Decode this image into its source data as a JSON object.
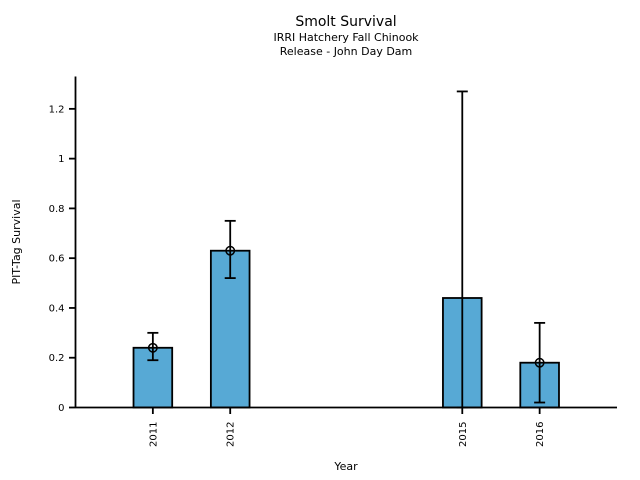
{
  "figure": {
    "background": "#ffffff"
  },
  "chart_data": {
    "type": "bar",
    "title": "Smolt Survival",
    "subtitle_line1": "IRRI Hatchery Fall Chinook",
    "subtitle_line2": "Release - John Day Dam",
    "xlabel": "Year",
    "ylabel": "PIT-Tag Survival",
    "categories": [
      "2011",
      "2012",
      "2015",
      "2016"
    ],
    "x_years": [
      2011,
      2012,
      2015,
      2016
    ],
    "values": [
      0.24,
      0.63,
      0.44,
      0.18
    ],
    "error_low": [
      0.19,
      0.52,
      0.0,
      0.02
    ],
    "error_high": [
      0.3,
      0.75,
      1.27,
      0.34
    ],
    "point_markers": [
      true,
      true,
      false,
      true
    ],
    "bar_width_years": 0.5,
    "xlim": [
      2010,
      2017
    ],
    "ylim": [
      0,
      1.33
    ],
    "yticks": [
      0,
      0.2,
      0.4,
      0.6,
      0.8,
      1,
      1.2
    ],
    "ytick_labels": [
      "0",
      "0.2",
      "0.4",
      "0.6",
      "0.8",
      "1",
      "1.2"
    ],
    "grid": false,
    "legend": "none",
    "bar_color": "#57a9d5",
    "edge_color": "#000000",
    "axis_color": "#000000"
  }
}
